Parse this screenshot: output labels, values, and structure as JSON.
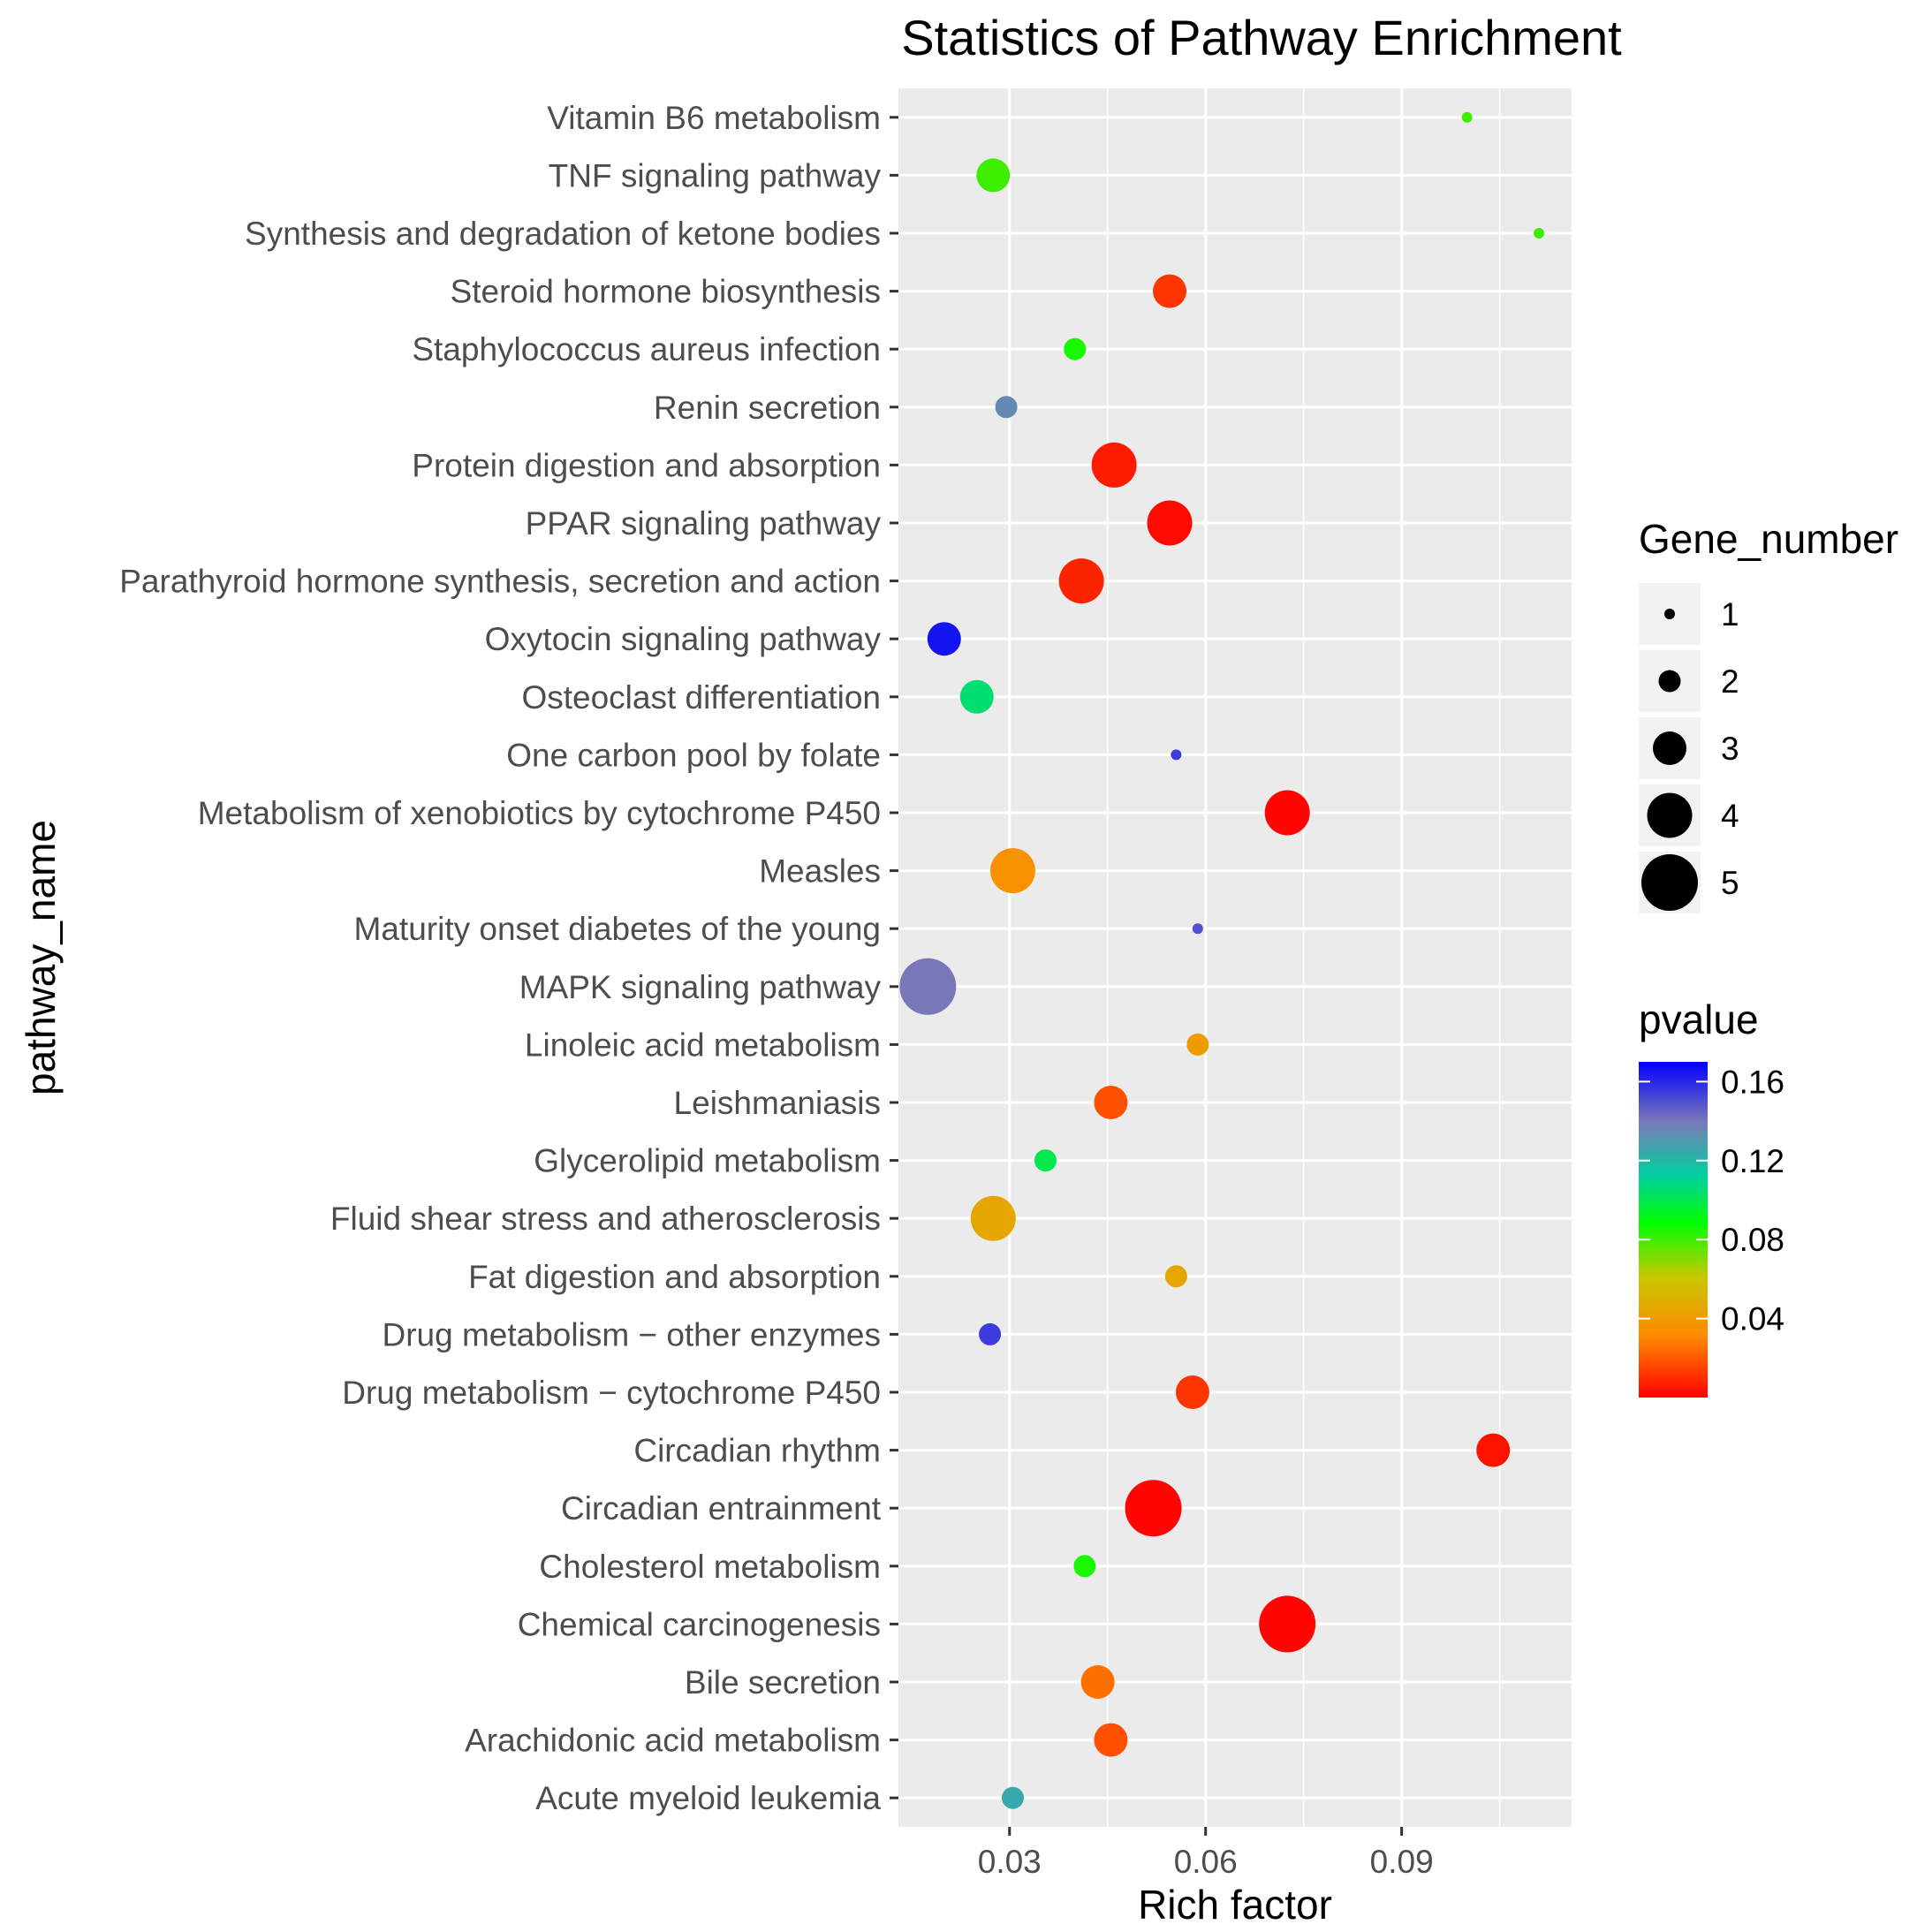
{
  "chart_data": {
    "type": "scatter",
    "title": "Statistics of Pathway Enrichment",
    "xlabel": "Rich factor",
    "ylabel": "pathway_name",
    "xlim": [
      0.013,
      0.116
    ],
    "xticks": [
      0.03,
      0.06,
      0.09
    ],
    "xtick_labels": [
      "0.03",
      "0.06",
      "0.09"
    ],
    "grid": true,
    "points": [
      {
        "pathway": "Vitamin B6 metabolism",
        "rich_factor": 0.1,
        "gene_number": 1,
        "pvalue": 0.08
      },
      {
        "pathway": "TNF signaling pathway",
        "rich_factor": 0.0275,
        "gene_number": 3,
        "pvalue": 0.08
      },
      {
        "pathway": "Synthesis and degradation of ketone bodies",
        "rich_factor": 0.111,
        "gene_number": 1,
        "pvalue": 0.08
      },
      {
        "pathway": "Steroid hormone biosynthesis",
        "rich_factor": 0.0545,
        "gene_number": 3,
        "pvalue": 0.012
      },
      {
        "pathway": "Staphylococcus aureus infection",
        "rich_factor": 0.04,
        "gene_number": 2,
        "pvalue": 0.085
      },
      {
        "pathway": "Renin secretion",
        "rich_factor": 0.0295,
        "gene_number": 2,
        "pvalue": 0.135
      },
      {
        "pathway": "Protein digestion and absorption",
        "rich_factor": 0.046,
        "gene_number": 4,
        "pvalue": 0.006
      },
      {
        "pathway": "PPAR signaling pathway",
        "rich_factor": 0.0545,
        "gene_number": 4,
        "pvalue": 0.002
      },
      {
        "pathway": "Parathyroid hormone synthesis, secretion and action",
        "rich_factor": 0.041,
        "gene_number": 4,
        "pvalue": 0.008
      },
      {
        "pathway": "Oxytocin signaling pathway",
        "rich_factor": 0.02,
        "gene_number": 3,
        "pvalue": 0.165
      },
      {
        "pathway": "Osteoclast differentiation",
        "rich_factor": 0.025,
        "gene_number": 3,
        "pvalue": 0.105
      },
      {
        "pathway": "One carbon pool by folate",
        "rich_factor": 0.0555,
        "gene_number": 1,
        "pvalue": 0.155
      },
      {
        "pathway": "Metabolism of xenobiotics by cytochrome P450",
        "rich_factor": 0.0725,
        "gene_number": 4,
        "pvalue": 0.001
      },
      {
        "pathway": "Measles",
        "rich_factor": 0.0305,
        "gene_number": 4,
        "pvalue": 0.035
      },
      {
        "pathway": "Maturity onset diabetes of the young",
        "rich_factor": 0.0588,
        "gene_number": 1,
        "pvalue": 0.15
      },
      {
        "pathway": "MAPK signaling pathway",
        "rich_factor": 0.0175,
        "gene_number": 5,
        "pvalue": 0.14
      },
      {
        "pathway": "Linoleic acid metabolism",
        "rich_factor": 0.0588,
        "gene_number": 2,
        "pvalue": 0.04
      },
      {
        "pathway": "Leishmaniasis",
        "rich_factor": 0.0455,
        "gene_number": 3,
        "pvalue": 0.018
      },
      {
        "pathway": "Glycerolipid metabolism",
        "rich_factor": 0.0355,
        "gene_number": 2,
        "pvalue": 0.1
      },
      {
        "pathway": "Fluid shear stress and atherosclerosis",
        "rich_factor": 0.0275,
        "gene_number": 4,
        "pvalue": 0.045
      },
      {
        "pathway": "Fat digestion and absorption",
        "rich_factor": 0.0555,
        "gene_number": 2,
        "pvalue": 0.045
      },
      {
        "pathway": "Drug metabolism − other enzymes",
        "rich_factor": 0.027,
        "gene_number": 2,
        "pvalue": 0.155
      },
      {
        "pathway": "Drug metabolism − cytochrome P450",
        "rich_factor": 0.058,
        "gene_number": 3,
        "pvalue": 0.012
      },
      {
        "pathway": "Circadian rhythm",
        "rich_factor": 0.104,
        "gene_number": 3,
        "pvalue": 0.004
      },
      {
        "pathway": "Circadian entrainment",
        "rich_factor": 0.052,
        "gene_number": 5,
        "pvalue": 0.001
      },
      {
        "pathway": "Cholesterol metabolism",
        "rich_factor": 0.0415,
        "gene_number": 2,
        "pvalue": 0.085
      },
      {
        "pathway": "Chemical carcinogenesis",
        "rich_factor": 0.0725,
        "gene_number": 5,
        "pvalue": 0.001
      },
      {
        "pathway": "Bile secretion",
        "rich_factor": 0.0435,
        "gene_number": 3,
        "pvalue": 0.025
      },
      {
        "pathway": "Arachidonic acid metabolism",
        "rich_factor": 0.0455,
        "gene_number": 3,
        "pvalue": 0.018
      },
      {
        "pathway": "Acute myeloid leukemia",
        "rich_factor": 0.0305,
        "gene_number": 2,
        "pvalue": 0.125
      }
    ],
    "size_legend": {
      "title": "Gene_number",
      "values": [
        1,
        2,
        3,
        4,
        5
      ],
      "labels": [
        "1",
        "2",
        "3",
        "4",
        "5"
      ]
    },
    "color_legend": {
      "title": "pvalue",
      "range": [
        0.0,
        0.17
      ],
      "ticks": [
        0.16,
        0.12,
        0.08,
        0.04
      ],
      "tick_labels": [
        "0.16",
        "0.12",
        "0.08",
        "0.04"
      ],
      "colors": [
        "#ff0000",
        "#ff8800",
        "#c8c800",
        "#00ff00",
        "#00d0a0",
        "#7a7ab8",
        "#0000ff"
      ]
    }
  }
}
